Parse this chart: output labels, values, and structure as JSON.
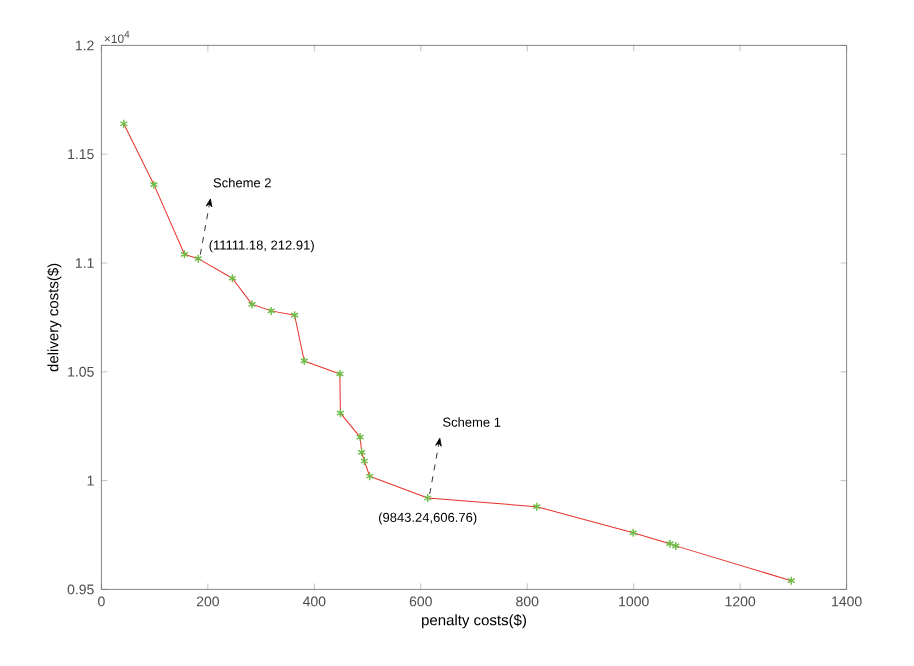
{
  "chart_data": {
    "type": "line",
    "xlabel": "penalty costs($)",
    "ylabel": "delivery costs($)",
    "x": [
      42,
      98.7,
      156,
      182,
      246,
      283,
      319,
      363,
      381,
      448,
      449,
      486,
      489,
      494,
      504,
      613,
      818,
      999,
      1068,
      1079,
      1296
    ],
    "series": [
      {
        "color": "#e8312a",
        "colors": [
          "#6dbb45",
          "#6dbb45",
          "#6dbb45",
          "#6dbb45",
          "#6dbb45",
          "#6dbb45",
          "#6dbb45",
          "#6dbb45",
          "#6dbb45",
          "#6dbb45",
          "#6dbb45",
          "#6dbb45",
          "#6dbb45",
          "#6dbb45",
          "#6dbb45",
          "#6dbb45",
          "#6dbb45",
          "#6dbb45",
          "#6dbb45",
          "#6dbb45",
          "#6dbb45"
        ],
        "values": [
          1.164,
          1.136,
          1.104,
          1.102,
          1.093,
          1.081,
          1.078,
          1.076,
          1.055,
          1.049,
          1.031,
          1.02,
          1.013,
          1.009,
          1.002,
          0.992,
          0.988,
          0.976,
          0.971,
          0.97,
          0.954
        ]
      }
    ],
    "marker": "cross",
    "line_style": "solid",
    "grid": false,
    "xlim": [
      0,
      1400
    ],
    "ylim": [
      0.95,
      1.2
    ],
    "xticks": [
      0,
      200,
      400,
      600,
      800,
      1000,
      1200,
      1400
    ],
    "yticks": [
      0.95,
      1,
      1.05,
      1.1,
      1.15,
      1.2
    ],
    "annotations": [
      "×10$^{4}$",
      "Scheme 2",
      {
        "text": "(11111.18, 212.91)",
        "x": 182,
        "y": 1.102
      },
      "Scheme 1",
      {
        "text": "(9843.24,606.76)",
        "x": 613,
        "y": 0.992
      }
    ]
  }
}
